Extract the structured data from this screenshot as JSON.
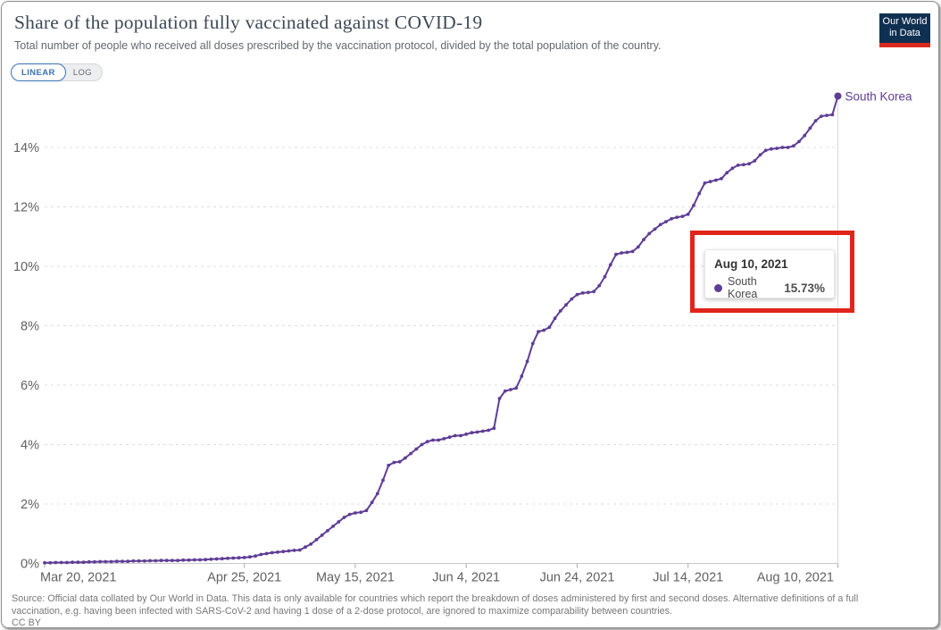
{
  "header": {
    "title": "Share of the population fully vaccinated against COVID-19",
    "subtitle": "Total number of people who received all doses prescribed by the vaccination protocol, divided by the total population of the country.",
    "logo_line1": "Our World",
    "logo_line2": "in Data"
  },
  "controls": {
    "linear_label": "LINEAR",
    "log_label": "LOG",
    "selected": "LINEAR"
  },
  "chart_data": {
    "type": "line",
    "title": "Share of the population fully vaccinated against COVID-19",
    "xlabel": "",
    "ylabel": "",
    "y_unit": "%",
    "ylim": [
      0,
      16
    ],
    "grid": "dashed-horizontal",
    "legend_position": "end-of-line-label",
    "end_label": "South Korea",
    "y_ticks": [
      {
        "label": "0%",
        "value": 0
      },
      {
        "label": "2%",
        "value": 2
      },
      {
        "label": "4%",
        "value": 4
      },
      {
        "label": "6%",
        "value": 6
      },
      {
        "label": "8%",
        "value": 8
      },
      {
        "label": "10%",
        "value": 10
      },
      {
        "label": "12%",
        "value": 12
      },
      {
        "label": "14%",
        "value": 14
      }
    ],
    "x_ticks": [
      {
        "label": "Mar 20, 2021",
        "day": 0
      },
      {
        "label": "Apr 25, 2021",
        "day": 36
      },
      {
        "label": "May 15, 2021",
        "day": 56
      },
      {
        "label": "Jun 4, 2021",
        "day": 76
      },
      {
        "label": "Jun 24, 2021",
        "day": 96
      },
      {
        "label": "Jul 14, 2021",
        "day": 116
      },
      {
        "label": "Aug 10, 2021",
        "day": 143
      }
    ],
    "series": [
      {
        "name": "South Korea",
        "color": "#5f3d95",
        "start_date": "2021-03-20",
        "end_date": "2021-08-10",
        "frequency": "daily",
        "last_value": 15.73,
        "values": [
          0.02,
          0.02,
          0.03,
          0.03,
          0.03,
          0.04,
          0.04,
          0.04,
          0.05,
          0.05,
          0.06,
          0.06,
          0.06,
          0.07,
          0.07,
          0.07,
          0.08,
          0.08,
          0.08,
          0.09,
          0.09,
          0.1,
          0.1,
          0.1,
          0.1,
          0.11,
          0.11,
          0.12,
          0.12,
          0.13,
          0.14,
          0.15,
          0.16,
          0.17,
          0.18,
          0.19,
          0.2,
          0.22,
          0.25,
          0.3,
          0.33,
          0.36,
          0.38,
          0.4,
          0.42,
          0.44,
          0.45,
          0.55,
          0.65,
          0.8,
          0.95,
          1.1,
          1.25,
          1.4,
          1.55,
          1.65,
          1.7,
          1.72,
          1.78,
          2.05,
          2.35,
          2.8,
          3.3,
          3.4,
          3.42,
          3.55,
          3.7,
          3.85,
          4.0,
          4.1,
          4.15,
          4.15,
          4.2,
          4.25,
          4.3,
          4.3,
          4.35,
          4.4,
          4.42,
          4.45,
          4.48,
          4.55,
          5.55,
          5.8,
          5.85,
          5.9,
          6.3,
          6.8,
          7.4,
          7.8,
          7.85,
          7.95,
          8.25,
          8.5,
          8.7,
          8.9,
          9.05,
          9.1,
          9.12,
          9.15,
          9.35,
          9.65,
          10.05,
          10.4,
          10.45,
          10.47,
          10.5,
          10.65,
          10.9,
          11.1,
          11.25,
          11.4,
          11.5,
          11.6,
          11.65,
          11.68,
          11.75,
          12.05,
          12.45,
          12.8,
          12.85,
          12.9,
          12.95,
          13.15,
          13.3,
          13.4,
          13.42,
          13.45,
          13.55,
          13.75,
          13.9,
          13.95,
          13.97,
          14.0,
          14.0,
          14.05,
          14.2,
          14.4,
          14.65,
          14.9,
          15.05,
          15.08,
          15.1,
          15.73
        ]
      }
    ]
  },
  "tooltip": {
    "date": "Aug 10, 2021",
    "series_name": "South Korea",
    "value": "15.73%"
  },
  "footer": {
    "line1": "Source: Official data collated by Our World in Data. This data is only available for countries which report the breakdown of doses administered by first and second doses. Alternative definitions of a full",
    "line2": "vaccination, e.g. having been infected with SARS-CoV-2 and having 1 dose of a 2-dose protocol, are ignored to maximize comparability between countries.",
    "license": "CC BY"
  },
  "colors": {
    "series": "#5f3d95",
    "highlight_red": "#e1251b",
    "logo_navy": "#103052",
    "logo_red": "#dc2a20",
    "linear_blue": "#3873b3",
    "grid": "#dcdce6",
    "axis": "#c8c8d0",
    "tick_text": "#616161"
  }
}
